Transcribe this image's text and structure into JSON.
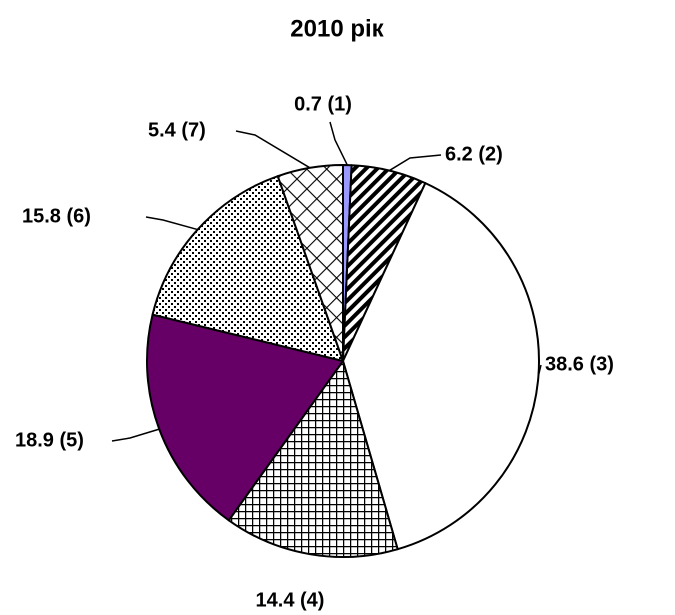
{
  "chart_data": {
    "type": "pie",
    "title": "2010 рік",
    "values": [
      0.7,
      6.2,
      38.6,
      14.4,
      18.9,
      15.8,
      5.4
    ],
    "value_labels": [
      "0.7 (1)",
      "6.2 (2)",
      "38.6 (3)",
      "14.4 (4)",
      "18.9 (5)",
      "15.8 (6)",
      "5.4 (7)"
    ],
    "colors": [
      "#9999ff",
      "#000000",
      "#ffffff",
      "#000000",
      "#660066",
      "#000000",
      "#000000"
    ],
    "patterns": [
      "solid",
      "diagonal-stripes",
      "solid",
      "grid",
      "solid",
      "dots",
      "diagonal-grid"
    ]
  }
}
